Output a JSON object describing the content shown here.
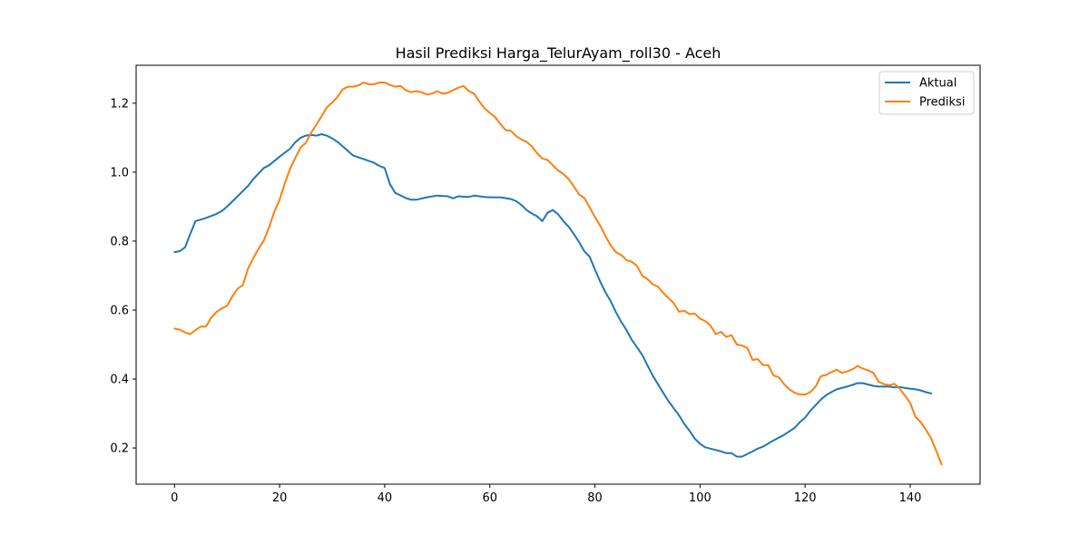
{
  "chart_data": {
    "type": "line",
    "title": "Hasil Prediksi Harga_TelurAyam_roll30 - Aceh",
    "xlabel": "",
    "ylabel": "",
    "xlim": [
      -7.3,
      153.3
    ],
    "ylim": [
      0.095,
      1.31
    ],
    "xticks": [
      0,
      20,
      40,
      60,
      80,
      100,
      120,
      140
    ],
    "yticks": [
      0.2,
      0.4,
      0.6,
      0.8,
      1.0,
      1.2
    ],
    "ytick_labels": [
      "0.2",
      "0.4",
      "0.6",
      "0.8",
      "1.0",
      "1.2"
    ],
    "grid": false,
    "legend_position": "top-right",
    "series": [
      {
        "name": "Aktual",
        "color": "#1f77b4",
        "points": [
          [
            0,
            0.768
          ],
          [
            1,
            0.771
          ],
          [
            2,
            0.782
          ],
          [
            3,
            0.82
          ],
          [
            4,
            0.858
          ],
          [
            6,
            0.867
          ],
          [
            8,
            0.879
          ],
          [
            9,
            0.887
          ],
          [
            10,
            0.9
          ],
          [
            12,
            0.93
          ],
          [
            14,
            0.96
          ],
          [
            15,
            0.98
          ],
          [
            17,
            1.012
          ],
          [
            18,
            1.02
          ],
          [
            20,
            1.045
          ],
          [
            22,
            1.068
          ],
          [
            23,
            1.087
          ],
          [
            24,
            1.1
          ],
          [
            25,
            1.106
          ],
          [
            26,
            1.108
          ],
          [
            27,
            1.106
          ],
          [
            28,
            1.11
          ],
          [
            29,
            1.106
          ],
          [
            30,
            1.098
          ],
          [
            31,
            1.088
          ],
          [
            32,
            1.075
          ],
          [
            34,
            1.048
          ],
          [
            36,
            1.038
          ],
          [
            38,
            1.027
          ],
          [
            39,
            1.018
          ],
          [
            40,
            1.012
          ],
          [
            41,
            0.965
          ],
          [
            42,
            0.94
          ],
          [
            44,
            0.925
          ],
          [
            45,
            0.92
          ],
          [
            46,
            0.92
          ],
          [
            48,
            0.927
          ],
          [
            50,
            0.932
          ],
          [
            52,
            0.93
          ],
          [
            53,
            0.924
          ],
          [
            54,
            0.93
          ],
          [
            56,
            0.928
          ],
          [
            57,
            0.932
          ],
          [
            59,
            0.928
          ],
          [
            60,
            0.927
          ],
          [
            62,
            0.927
          ],
          [
            64,
            0.922
          ],
          [
            65,
            0.916
          ],
          [
            66,
            0.905
          ],
          [
            67,
            0.89
          ],
          [
            68,
            0.88
          ],
          [
            69,
            0.872
          ],
          [
            70,
            0.858
          ],
          [
            71,
            0.882
          ],
          [
            72,
            0.89
          ],
          [
            73,
            0.878
          ],
          [
            74,
            0.858
          ],
          [
            75,
            0.842
          ],
          [
            76,
            0.82
          ],
          [
            77,
            0.797
          ],
          [
            78,
            0.77
          ],
          [
            79,
            0.755
          ],
          [
            80,
            0.718
          ],
          [
            81,
            0.683
          ],
          [
            82,
            0.652
          ],
          [
            83,
            0.626
          ],
          [
            84,
            0.594
          ],
          [
            85,
            0.566
          ],
          [
            86,
            0.542
          ],
          [
            87,
            0.514
          ],
          [
            88,
            0.492
          ],
          [
            89,
            0.47
          ],
          [
            90,
            0.44
          ],
          [
            91,
            0.41
          ],
          [
            92,
            0.385
          ],
          [
            93,
            0.36
          ],
          [
            94,
            0.336
          ],
          [
            95,
            0.315
          ],
          [
            96,
            0.295
          ],
          [
            97,
            0.27
          ],
          [
            98,
            0.25
          ],
          [
            99,
            0.227
          ],
          [
            100,
            0.212
          ],
          [
            101,
            0.202
          ],
          [
            102,
            0.198
          ],
          [
            104,
            0.19
          ],
          [
            105,
            0.185
          ],
          [
            106,
            0.185
          ],
          [
            107,
            0.175
          ],
          [
            108,
            0.175
          ],
          [
            110,
            0.19
          ],
          [
            111,
            0.198
          ],
          [
            112,
            0.204
          ],
          [
            114,
            0.222
          ],
          [
            116,
            0.238
          ],
          [
            118,
            0.258
          ],
          [
            119,
            0.275
          ],
          [
            120,
            0.288
          ],
          [
            121,
            0.308
          ],
          [
            122,
            0.324
          ],
          [
            123,
            0.34
          ],
          [
            124,
            0.353
          ],
          [
            125,
            0.362
          ],
          [
            126,
            0.37
          ],
          [
            127,
            0.374
          ],
          [
            128,
            0.378
          ],
          [
            129,
            0.383
          ],
          [
            130,
            0.388
          ],
          [
            131,
            0.388
          ],
          [
            132,
            0.384
          ],
          [
            133,
            0.38
          ],
          [
            134,
            0.378
          ],
          [
            135,
            0.378
          ],
          [
            136,
            0.378
          ],
          [
            137,
            0.376
          ],
          [
            138,
            0.377
          ],
          [
            139,
            0.374
          ],
          [
            140,
            0.372
          ],
          [
            141,
            0.37
          ],
          [
            142,
            0.367
          ],
          [
            143,
            0.362
          ],
          [
            144,
            0.358
          ]
        ]
      },
      {
        "name": "Prediksi",
        "color": "#ff7f0e",
        "points": [
          [
            0,
            0.546
          ],
          [
            1,
            0.543
          ],
          [
            2,
            0.535
          ],
          [
            3,
            0.53
          ],
          [
            4,
            0.542
          ],
          [
            5,
            0.552
          ],
          [
            6,
            0.552
          ],
          [
            7,
            0.578
          ],
          [
            8,
            0.595
          ],
          [
            9,
            0.605
          ],
          [
            10,
            0.612
          ],
          [
            11,
            0.64
          ],
          [
            12,
            0.662
          ],
          [
            13,
            0.672
          ],
          [
            14,
            0.72
          ],
          [
            15,
            0.75
          ],
          [
            16,
            0.778
          ],
          [
            17,
            0.802
          ],
          [
            18,
            0.84
          ],
          [
            19,
            0.885
          ],
          [
            20,
            0.92
          ],
          [
            21,
            0.968
          ],
          [
            22,
            1.01
          ],
          [
            23,
            1.042
          ],
          [
            24,
            1.072
          ],
          [
            25,
            1.085
          ],
          [
            26,
            1.114
          ],
          [
            27,
            1.138
          ],
          [
            28,
            1.162
          ],
          [
            29,
            1.188
          ],
          [
            30,
            1.202
          ],
          [
            31,
            1.218
          ],
          [
            32,
            1.24
          ],
          [
            33,
            1.248
          ],
          [
            34,
            1.248
          ],
          [
            35,
            1.252
          ],
          [
            36,
            1.26
          ],
          [
            37,
            1.255
          ],
          [
            38,
            1.255
          ],
          [
            39,
            1.26
          ],
          [
            40,
            1.26
          ],
          [
            41,
            1.253
          ],
          [
            42,
            1.248
          ],
          [
            43,
            1.25
          ],
          [
            44,
            1.238
          ],
          [
            45,
            1.232
          ],
          [
            46,
            1.235
          ],
          [
            47,
            1.232
          ],
          [
            48,
            1.225
          ],
          [
            49,
            1.228
          ],
          [
            50,
            1.235
          ],
          [
            51,
            1.228
          ],
          [
            52,
            1.23
          ],
          [
            53,
            1.238
          ],
          [
            54,
            1.245
          ],
          [
            55,
            1.25
          ],
          [
            56,
            1.235
          ],
          [
            57,
            1.228
          ],
          [
            58,
            1.205
          ],
          [
            59,
            1.185
          ],
          [
            60,
            1.172
          ],
          [
            61,
            1.16
          ],
          [
            62,
            1.14
          ],
          [
            63,
            1.122
          ],
          [
            64,
            1.12
          ],
          [
            65,
            1.105
          ],
          [
            66,
            1.095
          ],
          [
            67,
            1.088
          ],
          [
            68,
            1.075
          ],
          [
            69,
            1.055
          ],
          [
            70,
            1.04
          ],
          [
            71,
            1.035
          ],
          [
            72,
            1.02
          ],
          [
            73,
            1.005
          ],
          [
            74,
            0.995
          ],
          [
            75,
            0.98
          ],
          [
            76,
            0.958
          ],
          [
            77,
            0.935
          ],
          [
            78,
            0.925
          ],
          [
            79,
            0.898
          ],
          [
            80,
            0.87
          ],
          [
            81,
            0.845
          ],
          [
            82,
            0.815
          ],
          [
            83,
            0.788
          ],
          [
            84,
            0.768
          ],
          [
            85,
            0.76
          ],
          [
            86,
            0.745
          ],
          [
            87,
            0.74
          ],
          [
            88,
            0.728
          ],
          [
            89,
            0.7
          ],
          [
            90,
            0.69
          ],
          [
            91,
            0.675
          ],
          [
            92,
            0.668
          ],
          [
            93,
            0.65
          ],
          [
            94,
            0.635
          ],
          [
            95,
            0.62
          ],
          [
            96,
            0.595
          ],
          [
            97,
            0.598
          ],
          [
            98,
            0.588
          ],
          [
            99,
            0.59
          ],
          [
            100,
            0.575
          ],
          [
            101,
            0.568
          ],
          [
            102,
            0.555
          ],
          [
            103,
            0.53
          ],
          [
            104,
            0.537
          ],
          [
            105,
            0.522
          ],
          [
            106,
            0.527
          ],
          [
            107,
            0.5
          ],
          [
            108,
            0.497
          ],
          [
            109,
            0.49
          ],
          [
            110,
            0.455
          ],
          [
            111,
            0.458
          ],
          [
            112,
            0.44
          ],
          [
            113,
            0.44
          ],
          [
            114,
            0.41
          ],
          [
            115,
            0.405
          ],
          [
            116,
            0.385
          ],
          [
            117,
            0.37
          ],
          [
            118,
            0.36
          ],
          [
            119,
            0.355
          ],
          [
            120,
            0.355
          ],
          [
            121,
            0.362
          ],
          [
            122,
            0.378
          ],
          [
            123,
            0.408
          ],
          [
            124,
            0.412
          ],
          [
            125,
            0.42
          ],
          [
            126,
            0.427
          ],
          [
            127,
            0.418
          ],
          [
            128,
            0.422
          ],
          [
            129,
            0.428
          ],
          [
            130,
            0.438
          ],
          [
            131,
            0.43
          ],
          [
            132,
            0.425
          ],
          [
            133,
            0.418
          ],
          [
            134,
            0.392
          ],
          [
            135,
            0.385
          ],
          [
            136,
            0.382
          ],
          [
            137,
            0.386
          ],
          [
            138,
            0.372
          ],
          [
            139,
            0.352
          ],
          [
            140,
            0.33
          ],
          [
            141,
            0.29
          ],
          [
            142,
            0.275
          ],
          [
            143,
            0.252
          ],
          [
            144,
            0.228
          ],
          [
            145,
            0.19
          ],
          [
            146,
            0.152
          ]
        ]
      }
    ]
  }
}
